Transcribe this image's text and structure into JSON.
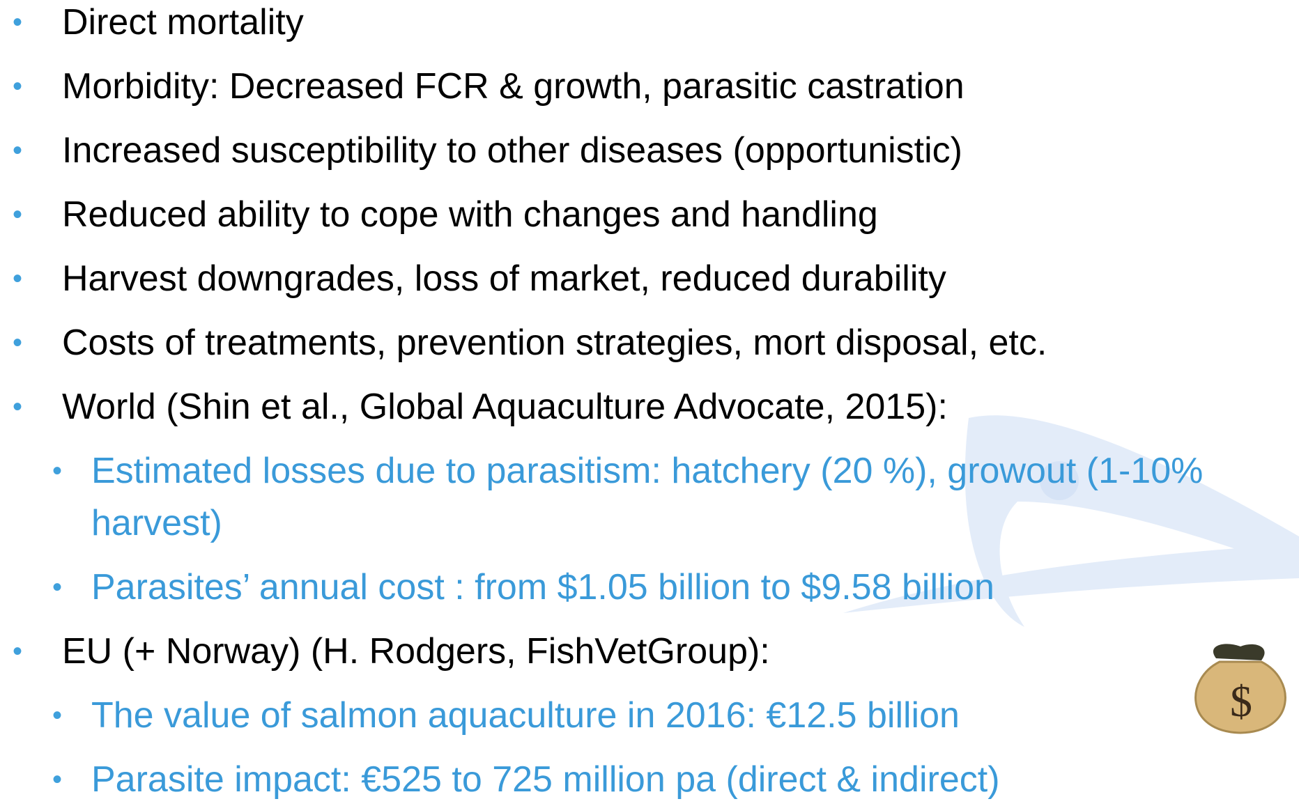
{
  "bullets": [
    {
      "text": "Direct mortality"
    },
    {
      "text": "Morbidity: Decreased FCR & growth, parasitic castration"
    },
    {
      "text": "Increased susceptibility to other diseases (opportunistic)"
    },
    {
      "text": "Reduced ability to cope with changes and handling"
    },
    {
      "text": "Harvest downgrades, loss of market, reduced durability"
    },
    {
      "text": "Costs of treatments, prevention strategies, mort disposal, etc."
    },
    {
      "text": "World (Shin et al.,  Global Aquaculture Advocate, 2015):",
      "items": [
        "Estimated losses due to parasitism: hatchery (20 %), growout (1-10% harvest)",
        "Parasites’ annual cost : from $1.05 billion to $9.58 billion"
      ]
    },
    {
      "text": "EU (+ Norway) (H. Rodgers, FishVetGroup):",
      "items": [
        "The value of salmon aquaculture in 2016: €12.5 billion",
        "Parasite impact: €525 to 725 million pa (direct & indirect)"
      ]
    }
  ]
}
